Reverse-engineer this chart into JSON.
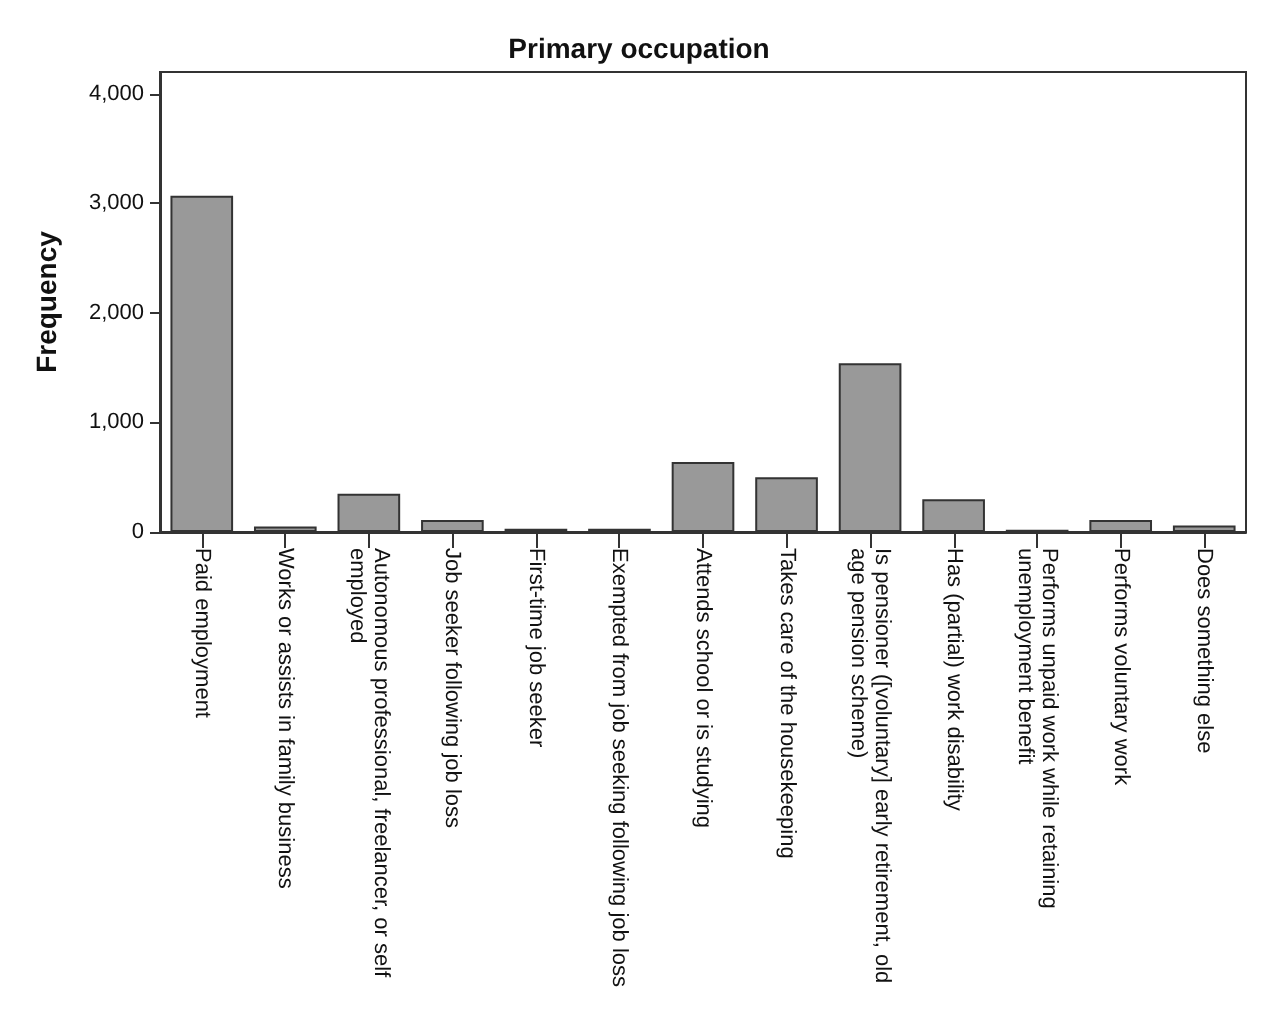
{
  "chart_data": {
    "type": "bar",
    "title": "Primary occupation",
    "ylabel": "Frequency",
    "categories": [
      "Paid employment",
      "Works or assists in family business",
      "Autonomous professional, freelancer, or self employed",
      "Job seeker following job loss",
      "First-time job seeker",
      "Exempted from job seeking following job loss",
      "Attends school or is studying",
      "Takes care of the housekeeping",
      "Is pensioner ([voluntary] early retirement, old age pension scheme)",
      "Has (partial) work disability",
      "Performs unpaid work while retaining unemployment benefit",
      "Performs voluntary work",
      "Does something else"
    ],
    "values": [
      3070,
      50,
      350,
      110,
      30,
      30,
      640,
      500,
      1540,
      300,
      20,
      110,
      60
    ],
    "color": "#999999",
    "ylim": [
      0,
      4200
    ],
    "yticks": [
      0,
      {
        "value": 1000,
        "label": "1,000"
      },
      {
        "value": 2000,
        "label": "2,000"
      },
      {
        "value": 3000,
        "label": "3,000"
      },
      {
        "value": 4000,
        "label": "4,000"
      }
    ],
    "grid": false
  }
}
